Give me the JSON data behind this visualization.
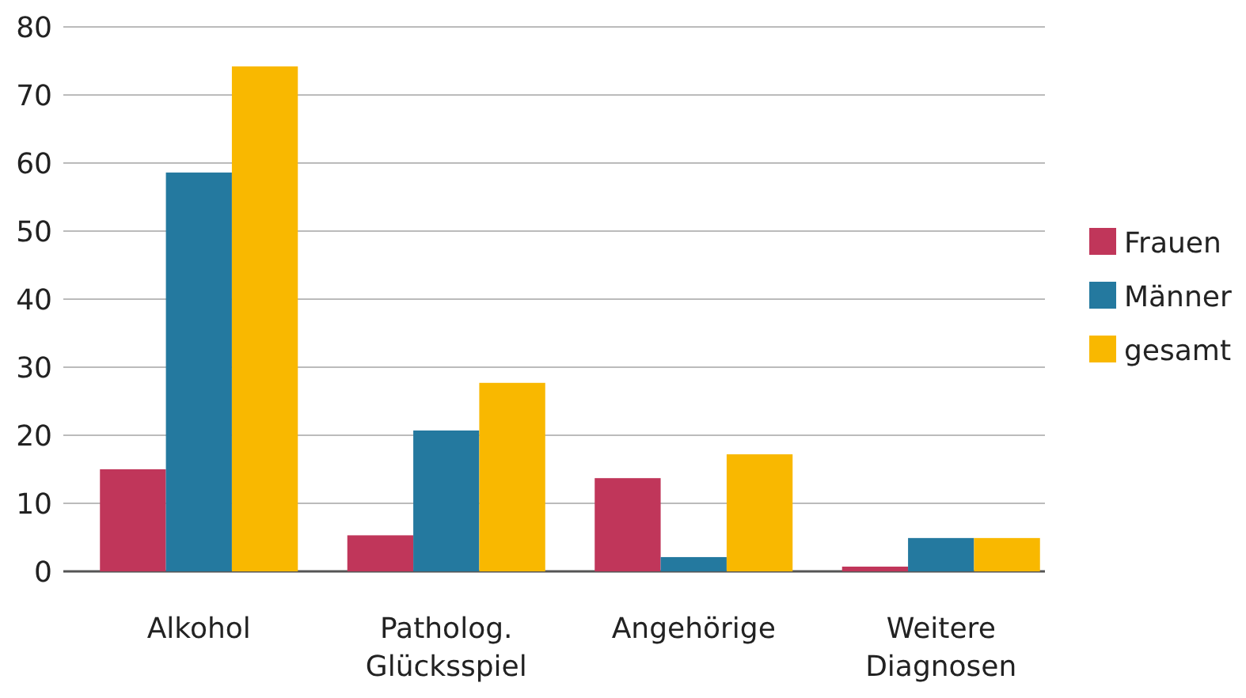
{
  "chart_data": {
    "type": "bar",
    "categories": [
      "Alkohol",
      "Patholog. Glücksspiel",
      "Angehörige",
      "Weitere Diagnosen"
    ],
    "series": [
      {
        "name": "Frauen",
        "color": "#c0365a",
        "values": [
          15,
          5.3,
          13.7,
          0.7
        ]
      },
      {
        "name": "Männer",
        "color": "#24799f",
        "values": [
          58.6,
          20.7,
          2.1,
          4.9
        ]
      },
      {
        "name": "gesamt",
        "color": "#f9b800",
        "values": [
          74.2,
          27.7,
          17.2,
          4.9
        ]
      }
    ],
    "ylim": [
      0,
      80
    ],
    "yticks": [
      0,
      10,
      20,
      30,
      40,
      50,
      60,
      70,
      80
    ],
    "grid": "y",
    "legend": "right"
  }
}
